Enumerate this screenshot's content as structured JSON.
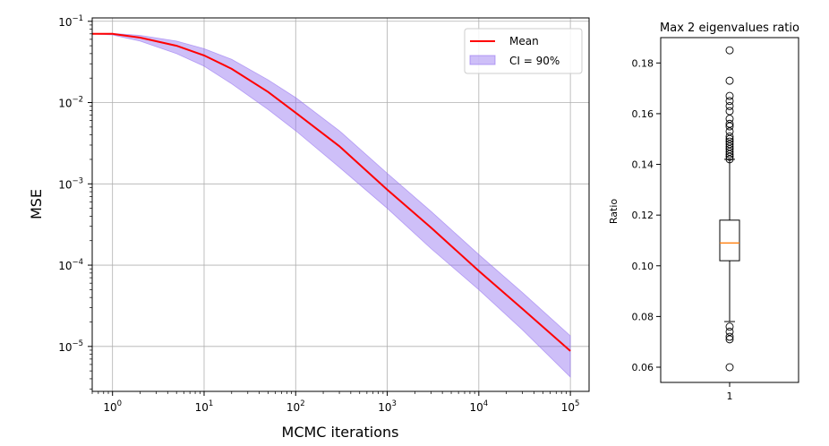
{
  "chart_data": [
    {
      "type": "line",
      "xlabel": "MCMC iterations",
      "ylabel": "MSE",
      "xscale": "log",
      "yscale": "log",
      "xlim": [
        0.6,
        160000
      ],
      "ylim": [
        2.8e-06,
        0.11
      ],
      "grid": true,
      "legend_position": "top-right",
      "x_ticks": [
        {
          "base": "10",
          "exp": "0",
          "value": 1
        },
        {
          "base": "10",
          "exp": "1",
          "value": 10
        },
        {
          "base": "10",
          "exp": "2",
          "value": 100
        },
        {
          "base": "10",
          "exp": "3",
          "value": 1000
        },
        {
          "base": "10",
          "exp": "4",
          "value": 10000
        },
        {
          "base": "10",
          "exp": "5",
          "value": 100000
        }
      ],
      "y_ticks": [
        {
          "base": "10",
          "exp": "−1",
          "value": 0.1
        },
        {
          "base": "10",
          "exp": "−2",
          "value": 0.01
        },
        {
          "base": "10",
          "exp": "−3",
          "value": 0.001
        },
        {
          "base": "10",
          "exp": "−4",
          "value": 0.0001
        },
        {
          "base": "10",
          "exp": "−5",
          "value": 1e-05
        }
      ],
      "series": [
        {
          "name": "Mean",
          "color": "#ff0000",
          "x": [
            0.6,
            1,
            2,
            5,
            10,
            20,
            50,
            100,
            300,
            1000,
            3000,
            10000,
            30000,
            100000
          ],
          "y": [
            0.07,
            0.07,
            0.063,
            0.05,
            0.038,
            0.026,
            0.0135,
            0.0075,
            0.0029,
            0.00085,
            0.00029,
            8.5e-05,
            2.9e-05,
            8.8e-06
          ]
        }
      ],
      "bands": [
        {
          "name": "CI = 90%",
          "color": "#9370f0",
          "x": [
            0.6,
            1,
            2,
            5,
            10,
            20,
            50,
            100,
            300,
            1000,
            3000,
            10000,
            30000,
            100000
          ],
          "lower": [
            0.07,
            0.068,
            0.057,
            0.04,
            0.028,
            0.017,
            0.0082,
            0.0045,
            0.0016,
            0.0005,
            0.00016,
            5e-05,
            1.6e-05,
            4.2e-06
          ],
          "upper": [
            0.07,
            0.071,
            0.067,
            0.057,
            0.046,
            0.034,
            0.019,
            0.0115,
            0.0045,
            0.00135,
            0.00046,
            0.000135,
            4.6e-05,
            1.35e-05
          ]
        }
      ]
    },
    {
      "type": "box",
      "title": "Max 2 eigenvalues ratio",
      "ylabel": "Ratio",
      "categories": [
        "1"
      ],
      "ylim": [
        0.054,
        0.19
      ],
      "y_ticks": [
        "0.06",
        "0.08",
        "0.10",
        "0.12",
        "0.14",
        "0.16",
        "0.18"
      ],
      "box": {
        "q1": 0.102,
        "median": 0.109,
        "q3": 0.118,
        "whisker_low": 0.078,
        "whisker_high": 0.142,
        "median_color": "#ff7f0e"
      },
      "outliers": [
        0.185,
        0.173,
        0.167,
        0.165,
        0.163,
        0.161,
        0.158,
        0.156,
        0.155,
        0.153,
        0.151,
        0.15,
        0.149,
        0.148,
        0.147,
        0.146,
        0.145,
        0.144,
        0.143,
        0.142,
        0.076,
        0.074,
        0.072,
        0.071,
        0.06
      ]
    }
  ]
}
